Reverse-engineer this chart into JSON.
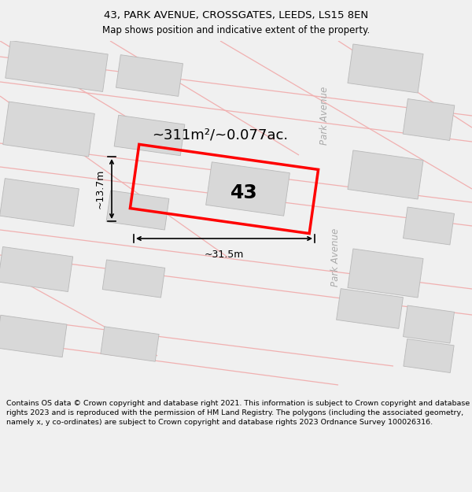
{
  "title_line1": "43, PARK AVENUE, CROSSGATES, LEEDS, LS15 8EN",
  "title_line2": "Map shows position and indicative extent of the property.",
  "footer_text": "Contains OS data © Crown copyright and database right 2021. This information is subject to Crown copyright and database rights 2023 and is reproduced with the permission of HM Land Registry. The polygons (including the associated geometry, namely x, y co-ordinates) are subject to Crown copyright and database rights 2023 Ordnance Survey 100026316.",
  "map_bg": "#ffffff",
  "building_fill": "#d8d8d8",
  "building_edge": "#b8b8b8",
  "road_color": "#f0b0b0",
  "plot_border_color": "#ff0000",
  "street_label": "Park Avenue",
  "property_number": "43",
  "area_text": "~311m²/~0.077ac.",
  "width_text": "~31.5m",
  "height_text": "~13.7m",
  "title_fontsize": 9.5,
  "subtitle_fontsize": 8.5,
  "footer_fontsize": 6.8,
  "street_label_color": "#aaaaaa",
  "annotation_color": "#000000"
}
